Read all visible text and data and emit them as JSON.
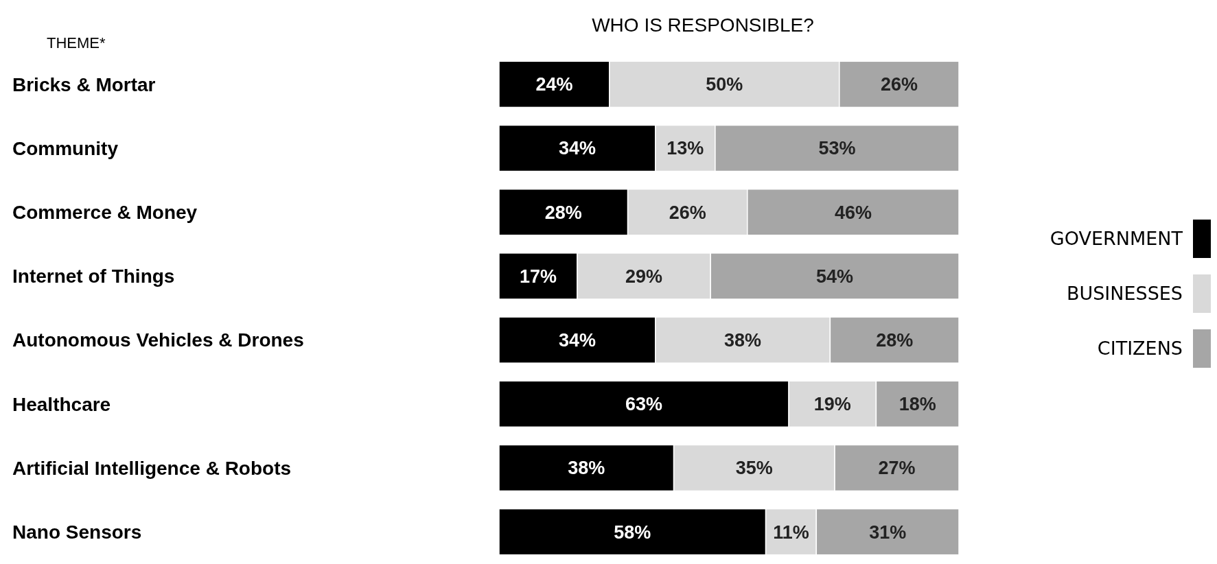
{
  "chart_data": {
    "type": "bar",
    "orientation": "horizontal",
    "stacked": true,
    "title": "WHO IS RESPONSIBLE?",
    "ylabel": "THEME*",
    "categories": [
      "Bricks & Mortar",
      "Community",
      "Commerce & Money",
      "Internet of Things",
      "Autonomous Vehicles & Drones",
      "Healthcare",
      "Artificial Intelligence & Robots",
      "Nano Sensors"
    ],
    "series": [
      {
        "name": "GOVERNMENT",
        "color": "#000000",
        "values": [
          24,
          34,
          28,
          17,
          34,
          63,
          38,
          58
        ],
        "value_labels": [
          "24%",
          "34%",
          "28%",
          "17%",
          "34%",
          "63%",
          "38%",
          "58%"
        ]
      },
      {
        "name": "BUSINESSES",
        "color": "#d9d9d9",
        "values": [
          50,
          13,
          26,
          29,
          38,
          19,
          35,
          11
        ],
        "value_labels": [
          "50%",
          "13%",
          "26%",
          "29%",
          "38%",
          "19%",
          "35%",
          "11%"
        ]
      },
      {
        "name": "CITIZENS",
        "color": "#a6a6a6",
        "values": [
          26,
          53,
          46,
          54,
          28,
          18,
          27,
          31
        ],
        "value_labels": [
          "26%",
          "53%",
          "46%",
          "54%",
          "28%",
          "18%",
          "27%",
          "31%"
        ]
      }
    ],
    "xlim": [
      0,
      100
    ],
    "tick_labels": "y",
    "legend": "right"
  }
}
